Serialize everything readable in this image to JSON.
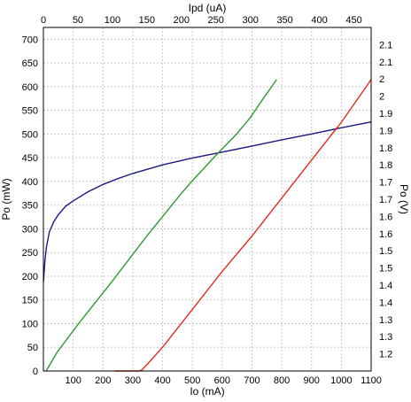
{
  "chart_data": {
    "type": "line",
    "title": "",
    "xlabel_bottom": "Io (mA)",
    "xlabel_top": "Ipd (uA)",
    "ylabel_left": "Po (mW)",
    "ylabel_right": "Po (V)",
    "xlim_bottom": [
      0,
      1100
    ],
    "xlim_top": [
      0,
      475
    ],
    "ylim_left": [
      0,
      725
    ],
    "ylim_right": [
      1.15,
      2.15
    ],
    "grid": true,
    "legend": "none",
    "x_ticks_bottom": [
      "100",
      "200",
      "300",
      "400",
      "500",
      "600",
      "700",
      "800",
      "900",
      "1000",
      "1100"
    ],
    "x_ticks_top": [
      "0",
      "50",
      "100",
      "150",
      "200",
      "250",
      "300",
      "350",
      "400",
      "450"
    ],
    "y_ticks_left": [
      "0",
      "50",
      "100",
      "150",
      "200",
      "250",
      "300",
      "350",
      "400",
      "450",
      "500",
      "550",
      "600",
      "650",
      "700"
    ],
    "y_ticks_right": [
      {
        "label": "1.2",
        "value": 1.2
      },
      {
        "label": "1.3",
        "value": 1.25
      },
      {
        "label": "1.3",
        "value": 1.3
      },
      {
        "label": "1.4",
        "value": 1.35
      },
      {
        "label": "1.4",
        "value": 1.4
      },
      {
        "label": "1.5",
        "value": 1.45
      },
      {
        "label": "1.5",
        "value": 1.5
      },
      {
        "label": "1.6",
        "value": 1.55
      },
      {
        "label": "1.6",
        "value": 1.6
      },
      {
        "label": "1.7",
        "value": 1.65
      },
      {
        "label": "1.7",
        "value": 1.7
      },
      {
        "label": "1.8",
        "value": 1.75
      },
      {
        "label": "1.8",
        "value": 1.8
      },
      {
        "label": "1.9",
        "value": 1.85
      },
      {
        "label": "1.9",
        "value": 1.9
      },
      {
        "label": "2",
        "value": 1.95
      },
      {
        "label": "2",
        "value": 2.0
      },
      {
        "label": "2.1",
        "value": 2.05
      },
      {
        "label": "2.1",
        "value": 2.1
      }
    ],
    "series": [
      {
        "color": "#1a1a80",
        "x_axis": "bottom",
        "y_axis": "right",
        "x": [
          0,
          5,
          10,
          20,
          35,
          50,
          75,
          100,
          150,
          200,
          250,
          300,
          400,
          500,
          600,
          700,
          800,
          900,
          1000,
          1100
        ],
        "y": [
          1.41,
          1.47,
          1.51,
          1.555,
          1.585,
          1.605,
          1.63,
          1.645,
          1.672,
          1.693,
          1.71,
          1.725,
          1.75,
          1.77,
          1.787,
          1.805,
          1.823,
          1.84,
          1.858,
          1.875
        ]
      },
      {
        "color": "#2e9a2e",
        "x_axis": "top",
        "y_axis": "left",
        "x": [
          4,
          20,
          50,
          100,
          150,
          200,
          215,
          250,
          280,
          300,
          320,
          338
        ],
        "y": [
          0,
          40,
          98,
          190,
          285,
          375,
          400,
          455,
          500,
          535,
          578,
          615
        ]
      },
      {
        "color": "#e8291c",
        "x_axis": "bottom",
        "y_axis": "left",
        "x": [
          240,
          320,
          330,
          350,
          400,
          500,
          600,
          700,
          800,
          900,
          1000,
          1050,
          1100
        ],
        "y": [
          0,
          0,
          2,
          15,
          50,
          130,
          210,
          285,
          365,
          445,
          525,
          570,
          615
        ]
      }
    ]
  }
}
